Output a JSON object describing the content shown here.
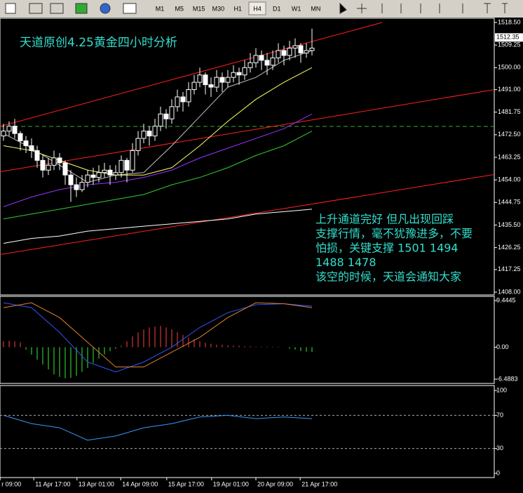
{
  "toolbar": {
    "timeframes": [
      "M1",
      "M5",
      "M15",
      "M30",
      "H1",
      "H4",
      "D1",
      "W1",
      "MN"
    ],
    "active": 5
  },
  "chart": {
    "title": "天道原创4.25黄金四小时分析",
    "ylim": [
      1408,
      1518.5
    ],
    "yticks": [
      {
        "value": 1518.5,
        "label": "1518.50"
      },
      {
        "value": 1509.25,
        "label": "1509.25"
      },
      {
        "value": 1500,
        "label": "1500.00"
      },
      {
        "value": 1491,
        "label": "1491.00"
      },
      {
        "value": 1481.75,
        "label": "1481.75"
      },
      {
        "value": 1472.5,
        "label": "1472.50"
      },
      {
        "value": 1463.25,
        "label": "1463.25"
      },
      {
        "value": 1454,
        "label": "1454.00"
      },
      {
        "value": 1444.75,
        "label": "1444.75"
      },
      {
        "value": 1435.5,
        "label": "1435.50"
      },
      {
        "value": 1426.25,
        "label": "1426.25"
      },
      {
        "value": 1417.25,
        "label": "1417.25"
      },
      {
        "value": 1408,
        "label": "1408.00"
      }
    ],
    "current_price": {
      "value": 1512.35,
      "label": "1512.35"
    },
    "candles": [
      [
        1472,
        1477,
        1470,
        1474
      ],
      [
        1474,
        1478,
        1472,
        1476
      ],
      [
        1476,
        1479,
        1471,
        1473
      ],
      [
        1473,
        1474,
        1466,
        1470
      ],
      [
        1470,
        1472,
        1465,
        1468
      ],
      [
        1468,
        1471,
        1463,
        1466
      ],
      [
        1466,
        1468,
        1459,
        1462
      ],
      [
        1462,
        1464,
        1455,
        1458
      ],
      [
        1458,
        1463,
        1456,
        1460
      ],
      [
        1460,
        1466,
        1458,
        1463
      ],
      [
        1463,
        1465,
        1458,
        1461
      ],
      [
        1461,
        1462,
        1452,
        1456
      ],
      [
        1456,
        1458,
        1445,
        1452
      ],
      [
        1452,
        1455,
        1447,
        1450
      ],
      [
        1450,
        1456,
        1449,
        1453
      ],
      [
        1453,
        1458,
        1451,
        1456
      ],
      [
        1456,
        1459,
        1452,
        1455
      ],
      [
        1455,
        1460,
        1453,
        1457
      ],
      [
        1457,
        1461,
        1455,
        1458
      ],
      [
        1458,
        1460,
        1452,
        1456
      ],
      [
        1456,
        1460,
        1454,
        1457
      ],
      [
        1457,
        1464,
        1455,
        1462
      ],
      [
        1462,
        1463,
        1453,
        1458
      ],
      [
        1458,
        1469,
        1457,
        1466
      ],
      [
        1466,
        1474,
        1464,
        1471
      ],
      [
        1471,
        1477,
        1469,
        1474
      ],
      [
        1474,
        1476,
        1468,
        1472
      ],
      [
        1472,
        1479,
        1470,
        1476
      ],
      [
        1476,
        1484,
        1474,
        1481
      ],
      [
        1481,
        1483,
        1475,
        1479
      ],
      [
        1479,
        1487,
        1477,
        1484
      ],
      [
        1484,
        1491,
        1482,
        1488
      ],
      [
        1488,
        1490,
        1482,
        1486
      ],
      [
        1486,
        1494,
        1484,
        1491
      ],
      [
        1491,
        1497,
        1489,
        1494
      ],
      [
        1494,
        1500,
        1492,
        1497
      ],
      [
        1497,
        1498,
        1489,
        1493
      ],
      [
        1493,
        1496,
        1488,
        1492
      ],
      [
        1492,
        1499,
        1490,
        1496
      ],
      [
        1496,
        1498,
        1490,
        1494
      ],
      [
        1494,
        1499,
        1492,
        1496
      ],
      [
        1496,
        1501,
        1494,
        1498
      ],
      [
        1498,
        1500,
        1493,
        1497
      ],
      [
        1497,
        1503,
        1495,
        1500
      ],
      [
        1500,
        1506,
        1498,
        1502
      ],
      [
        1502,
        1508,
        1500,
        1505
      ],
      [
        1505,
        1507,
        1499,
        1503
      ],
      [
        1503,
        1506,
        1497,
        1501
      ],
      [
        1501,
        1507,
        1499,
        1504
      ],
      [
        1504,
        1510,
        1502,
        1507
      ],
      [
        1507,
        1509,
        1501,
        1505
      ],
      [
        1505,
        1511,
        1503,
        1508
      ],
      [
        1508,
        1512,
        1504,
        1509
      ],
      [
        1509,
        1510,
        1502,
        1506
      ],
      [
        1506,
        1510,
        1504,
        1507
      ],
      [
        1507,
        1516,
        1505,
        1508
      ]
    ],
    "ma_x": [
      0,
      5,
      10,
      15,
      20,
      25,
      30,
      35,
      40,
      45,
      50,
      55
    ],
    "moving_averages": [
      {
        "color": "#c0c0c0",
        "values": [
          1473,
          1467,
          1460,
          1453,
          1456,
          1457,
          1468,
          1480,
          1492,
          1496,
          1503,
          1507
        ]
      },
      {
        "color": "#ffff66",
        "values": [
          1468,
          1466,
          1462,
          1458,
          1456,
          1456,
          1459,
          1468,
          1478,
          1487,
          1494,
          1500
        ]
      },
      {
        "color": "#9933ff",
        "values": [
          1443,
          1447,
          1450,
          1452,
          1453,
          1455,
          1458,
          1463,
          1467,
          1471,
          1475,
          1481
        ]
      },
      {
        "color": "#33cc33",
        "values": [
          1438,
          1440,
          1442,
          1444,
          1446,
          1448,
          1452,
          1455,
          1459,
          1464,
          1468,
          1474
        ]
      },
      {
        "color": "#ffffff",
        "values": [
          1428,
          1430,
          1431,
          1433,
          1434,
          1435,
          1436,
          1437,
          1438,
          1440,
          1441,
          1442
        ]
      }
    ],
    "channel_lines": [
      {
        "x": [
          -0.625,
          67.5
        ],
        "values": [
          1475.9,
          1518.5
        ]
      },
      {
        "x": [
          -0.625,
          87.5
        ],
        "values": [
          1457.3,
          1491
        ]
      },
      {
        "x": [
          -0.625,
          87.5
        ],
        "values": [
          1423.4,
          1456.2
        ]
      }
    ],
    "support_line": 1475.9,
    "annotation": [
      "上升通道完好  但凡出现回踩",
      "支撑行情，毫不犹豫进多，不要",
      "怕损，关键支撑 1501  1494",
      "1488  1478",
      "该空的时候，天道会通知大家"
    ]
  },
  "macd": {
    "ylim": [
      -6.4883,
      9.4445
    ],
    "yticks": [
      9.4445,
      {
        "value": 0,
        "label": "0.00"
      },
      -6.4883
    ],
    "histogram": [
      1.2,
      1.3,
      1.2,
      1.0,
      -0.5,
      -1.5,
      -2.5,
      -3.5,
      -4.5,
      -5.5,
      -6,
      -6.3,
      -6.2,
      -5.8,
      -5,
      -4.2,
      -3.2,
      -2.3,
      -1.5,
      -0.8,
      -0.3,
      0.3,
      1.2,
      2.2,
      3,
      3.6,
      4,
      4.2,
      4.3,
      4.0,
      3.6,
      3.0,
      2.5,
      2.0,
      1.6,
      1.2,
      0.9,
      0.7,
      0.5,
      0.5,
      0.4,
      0.3,
      0.3,
      0.2,
      0.2,
      0.1,
      0.1,
      0.1,
      0.1,
      0.1,
      0,
      -0.3,
      -0.5,
      -0.8,
      -0.9,
      -1.0
    ],
    "lines": [
      {
        "color": "#3355ff",
        "values": [
          9,
          8,
          3,
          -3,
          -5,
          -3,
          0,
          4,
          7,
          8.6,
          8.8,
          8.3
        ]
      },
      {
        "color": "#e08030",
        "values": [
          8,
          9,
          6,
          1,
          -4,
          -4,
          -1,
          2,
          6,
          9,
          8.8,
          8.0
        ]
      }
    ]
  },
  "rsi": {
    "ylim": [
      0,
      100
    ],
    "yticks": [
      100,
      70,
      30,
      0
    ],
    "levels": [
      70,
      30
    ],
    "values": [
      70,
      60,
      55,
      40,
      45,
      55,
      60,
      68,
      70,
      66,
      68,
      66
    ]
  },
  "time_axis": [
    {
      "x": -0.6,
      "label": "r 09:00"
    },
    {
      "x": 5.4,
      "label": "11 Apr 17:00"
    },
    {
      "x": 13.1,
      "label": "13 Apr 01:00"
    },
    {
      "x": 20.9,
      "label": "14 Apr 09:00"
    },
    {
      "x": 29.1,
      "label": "15 Apr 17:00"
    },
    {
      "x": 37.1,
      "label": "19 Apr 01:00"
    },
    {
      "x": 45,
      "label": "20 Apr 09:00"
    },
    {
      "x": 52.9,
      "label": "21 Apr 17:00"
    }
  ]
}
